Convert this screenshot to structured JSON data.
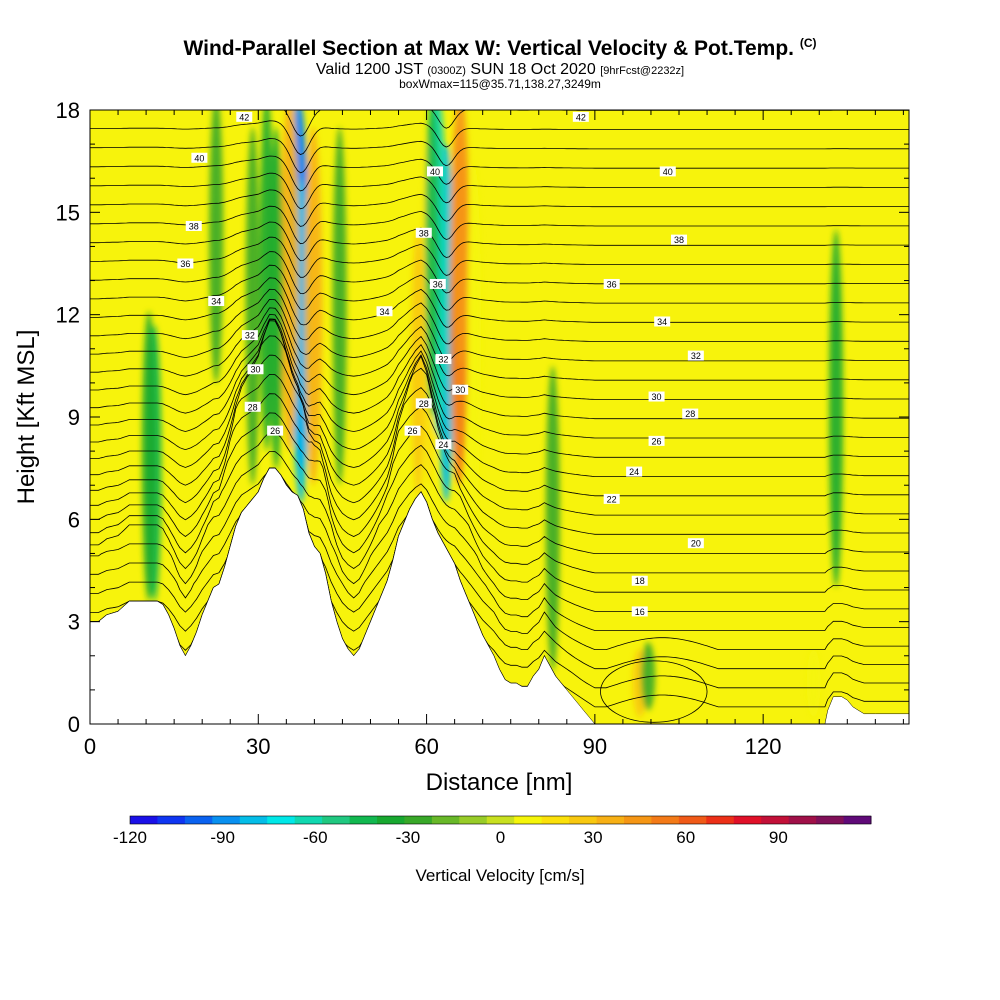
{
  "header": {
    "title": "Wind-Parallel Section at Max W: Vertical Velocity & Pot.Temp.",
    "title_mark": "(C)",
    "valid_prefix": "Valid 1200 JST",
    "valid_utc": "(0300Z)",
    "valid_date": "SUN 18 Oct 2020",
    "forecast": "[9hrFcst@2232z]",
    "box_info": "boxWmax=115@35.71,138.27,3249m"
  },
  "chart_data": {
    "type": "heatmap",
    "title": "Wind-Parallel Section at Max W: Vertical Velocity & Pot.Temp.",
    "xlabel": "Distance [nm]",
    "ylabel": "Height [Kft MSL]",
    "xlim": [
      0,
      146
    ],
    "ylim": [
      0,
      18
    ],
    "x_ticks": [
      0,
      30,
      60,
      90,
      120
    ],
    "y_ticks": [
      0,
      3,
      6,
      9,
      12,
      15,
      18
    ],
    "colorbar": {
      "label": "Vertical Velocity [cm/s]",
      "ticks": [
        -120,
        -90,
        -60,
        -30,
        0,
        30,
        60,
        90
      ],
      "min": -120,
      "max": 110,
      "step": 10,
      "colors": [
        "#1a10e8",
        "#0f35f2",
        "#0a62f0",
        "#0890f0",
        "#04bde8",
        "#00e8e8",
        "#10d8b0",
        "#20c880",
        "#12b850",
        "#18a830",
        "#38a828",
        "#68b828",
        "#98cc28",
        "#c8e020",
        "#f5f50a",
        "#fbe00a",
        "#f8c810",
        "#f7b015",
        "#f59615",
        "#f37a18",
        "#f05a18",
        "#ec3018",
        "#e01028",
        "#c21038",
        "#a01048",
        "#801058",
        "#600a78"
      ]
    },
    "terrain": [
      [
        0,
        3
      ],
      [
        1.5,
        3
      ],
      [
        3,
        3.2
      ],
      [
        5,
        3.3
      ],
      [
        7,
        3.6
      ],
      [
        9,
        3.6
      ],
      [
        12,
        3.6
      ],
      [
        13,
        3.5
      ],
      [
        14,
        3.2
      ],
      [
        15,
        2.8
      ],
      [
        16,
        2.3
      ],
      [
        17,
        2
      ],
      [
        18,
        2.3
      ],
      [
        19,
        2.7
      ],
      [
        20,
        3.2
      ],
      [
        21,
        3.6
      ],
      [
        22,
        4
      ],
      [
        23,
        4.1
      ],
      [
        24,
        4.6
      ],
      [
        25,
        5.2
      ],
      [
        26,
        5.8
      ],
      [
        27,
        6.2
      ],
      [
        28,
        6.4
      ],
      [
        29,
        6.6
      ],
      [
        30,
        6.8
      ],
      [
        31,
        7.2
      ],
      [
        32,
        7.5
      ],
      [
        33,
        7.5
      ],
      [
        34,
        7.3
      ],
      [
        35,
        7
      ],
      [
        36,
        6.8
      ],
      [
        37,
        6.7
      ],
      [
        38,
        6.3
      ],
      [
        39,
        5.6
      ],
      [
        40,
        5.2
      ],
      [
        41,
        5
      ],
      [
        42,
        4.4
      ],
      [
        43,
        3.6
      ],
      [
        44,
        3
      ],
      [
        45,
        2.5
      ],
      [
        46,
        2.2
      ],
      [
        47,
        2
      ],
      [
        48,
        2.2
      ],
      [
        49,
        2.6
      ],
      [
        50,
        3
      ],
      [
        51,
        3.4
      ],
      [
        52,
        3.8
      ],
      [
        53,
        4.2
      ],
      [
        54,
        4.8
      ],
      [
        55,
        5.5
      ],
      [
        56,
        5.9
      ],
      [
        57,
        6.3
      ],
      [
        58,
        6.6
      ],
      [
        59,
        6.8
      ],
      [
        60,
        6.5
      ],
      [
        61,
        6
      ],
      [
        62,
        5.6
      ],
      [
        63,
        5.3
      ],
      [
        64,
        5
      ],
      [
        65,
        4.7
      ],
      [
        66,
        4.2
      ],
      [
        67,
        3.8
      ],
      [
        68,
        3.4
      ],
      [
        69,
        3
      ],
      [
        70,
        2.6
      ],
      [
        71,
        2.3
      ],
      [
        72,
        2
      ],
      [
        73,
        1.6
      ],
      [
        74,
        1.3
      ],
      [
        75,
        1.2
      ],
      [
        76,
        1.2
      ],
      [
        77,
        1.1
      ],
      [
        78,
        1.1
      ],
      [
        79,
        1.4
      ],
      [
        80,
        1.6
      ],
      [
        81,
        2
      ],
      [
        82,
        1.7
      ],
      [
        83,
        1.4
      ],
      [
        84,
        1.2
      ],
      [
        85,
        1
      ],
      [
        86,
        0.8
      ],
      [
        87,
        0.6
      ],
      [
        88,
        0.4
      ],
      [
        89,
        0.2
      ],
      [
        90,
        0
      ],
      [
        131,
        0
      ],
      [
        131.5,
        0.4
      ],
      [
        132.5,
        0.8
      ],
      [
        134,
        0.8
      ],
      [
        135,
        0.7
      ],
      [
        136,
        0.5
      ],
      [
        137,
        0.4
      ],
      [
        138,
        0.3
      ],
      [
        140,
        0.3
      ],
      [
        146,
        0.3
      ]
    ],
    "velocity_cells": [
      {
        "x": 37.5,
        "y": 12.5,
        "w_cm_s": -110
      },
      {
        "x": 37.2,
        "y": 14.5,
        "w_cm_s": -90
      },
      {
        "x": 37.6,
        "y": 10.5,
        "w_cm_s": -80
      },
      {
        "x": 35.6,
        "y": 13,
        "w_cm_s": 55
      },
      {
        "x": 39.8,
        "y": 12,
        "w_cm_s": 50
      },
      {
        "x": 33.2,
        "y": 12,
        "w_cm_s": -30
      },
      {
        "x": 31.5,
        "y": 13,
        "w_cm_s": -25
      },
      {
        "x": 29,
        "y": 12,
        "w_cm_s": -20
      },
      {
        "x": 63.5,
        "y": 11.5,
        "w_cm_s": -80
      },
      {
        "x": 62,
        "y": 13.5,
        "w_cm_s": -60
      },
      {
        "x": 65.8,
        "y": 12,
        "w_cm_s": 75
      },
      {
        "x": 66,
        "y": 15.5,
        "w_cm_s": 60
      },
      {
        "x": 60.5,
        "y": 12,
        "w_cm_s": 30
      },
      {
        "x": 58.5,
        "y": 9,
        "w_cm_s": 45
      },
      {
        "x": 61,
        "y": 14,
        "w_cm_s": -35
      },
      {
        "x": 68.5,
        "y": 11,
        "w_cm_s": 25
      },
      {
        "x": 11.5,
        "y": 6.2,
        "w_cm_s": -40
      },
      {
        "x": 10.5,
        "y": 6.6,
        "w_cm_s": -25
      },
      {
        "x": 22.5,
        "y": 15,
        "w_cm_s": -20
      },
      {
        "x": 44.5,
        "y": 12,
        "w_cm_s": -20
      },
      {
        "x": 82.5,
        "y": 5,
        "w_cm_s": -15
      },
      {
        "x": 133,
        "y": 9,
        "w_cm_s": -25
      },
      {
        "x": 98,
        "y": 1.2,
        "w_cm_s": 40
      },
      {
        "x": 99.5,
        "y": 1.4,
        "w_cm_s": -20
      },
      {
        "x": 129,
        "y": 1.2,
        "w_cm_s": 25
      }
    ],
    "theta_contour_interval_K": 1,
    "theta_labels": [
      {
        "x": 27.5,
        "y": 17.8,
        "value": "42"
      },
      {
        "x": 87.5,
        "y": 17.8,
        "value": "42"
      },
      {
        "x": 19.5,
        "y": 16.6,
        "value": "40"
      },
      {
        "x": 61.5,
        "y": 16.2,
        "value": "40"
      },
      {
        "x": 103,
        "y": 16.2,
        "value": "40"
      },
      {
        "x": 18.5,
        "y": 14.6,
        "value": "38"
      },
      {
        "x": 59.5,
        "y": 14.4,
        "value": "38"
      },
      {
        "x": 105,
        "y": 14.2,
        "value": "38"
      },
      {
        "x": 17,
        "y": 13.5,
        "value": "36"
      },
      {
        "x": 62,
        "y": 12.9,
        "value": "36"
      },
      {
        "x": 93,
        "y": 12.9,
        "value": "36"
      },
      {
        "x": 22.5,
        "y": 12.4,
        "value": "34"
      },
      {
        "x": 52.5,
        "y": 12.1,
        "value": "34"
      },
      {
        "x": 102,
        "y": 11.8,
        "value": "34"
      },
      {
        "x": 28.5,
        "y": 11.4,
        "value": "32"
      },
      {
        "x": 63,
        "y": 10.7,
        "value": "32"
      },
      {
        "x": 108,
        "y": 10.8,
        "value": "32"
      },
      {
        "x": 29.5,
        "y": 10.4,
        "value": "30"
      },
      {
        "x": 66,
        "y": 9.8,
        "value": "30"
      },
      {
        "x": 101,
        "y": 9.6,
        "value": "30"
      },
      {
        "x": 29,
        "y": 9.3,
        "value": "28"
      },
      {
        "x": 59.5,
        "y": 9.4,
        "value": "28"
      },
      {
        "x": 107,
        "y": 9.1,
        "value": "28"
      },
      {
        "x": 33,
        "y": 8.6,
        "value": "26"
      },
      {
        "x": 57.5,
        "y": 8.6,
        "value": "26"
      },
      {
        "x": 101,
        "y": 8.3,
        "value": "26"
      },
      {
        "x": 63,
        "y": 8.2,
        "value": "24"
      },
      {
        "x": 97,
        "y": 7.4,
        "value": "24"
      },
      {
        "x": 93,
        "y": 6.6,
        "value": "22"
      },
      {
        "x": 108,
        "y": 5.3,
        "value": "20"
      },
      {
        "x": 98,
        "y": 4.2,
        "value": "18"
      },
      {
        "x": 98,
        "y": 3.3,
        "value": "16"
      }
    ]
  }
}
